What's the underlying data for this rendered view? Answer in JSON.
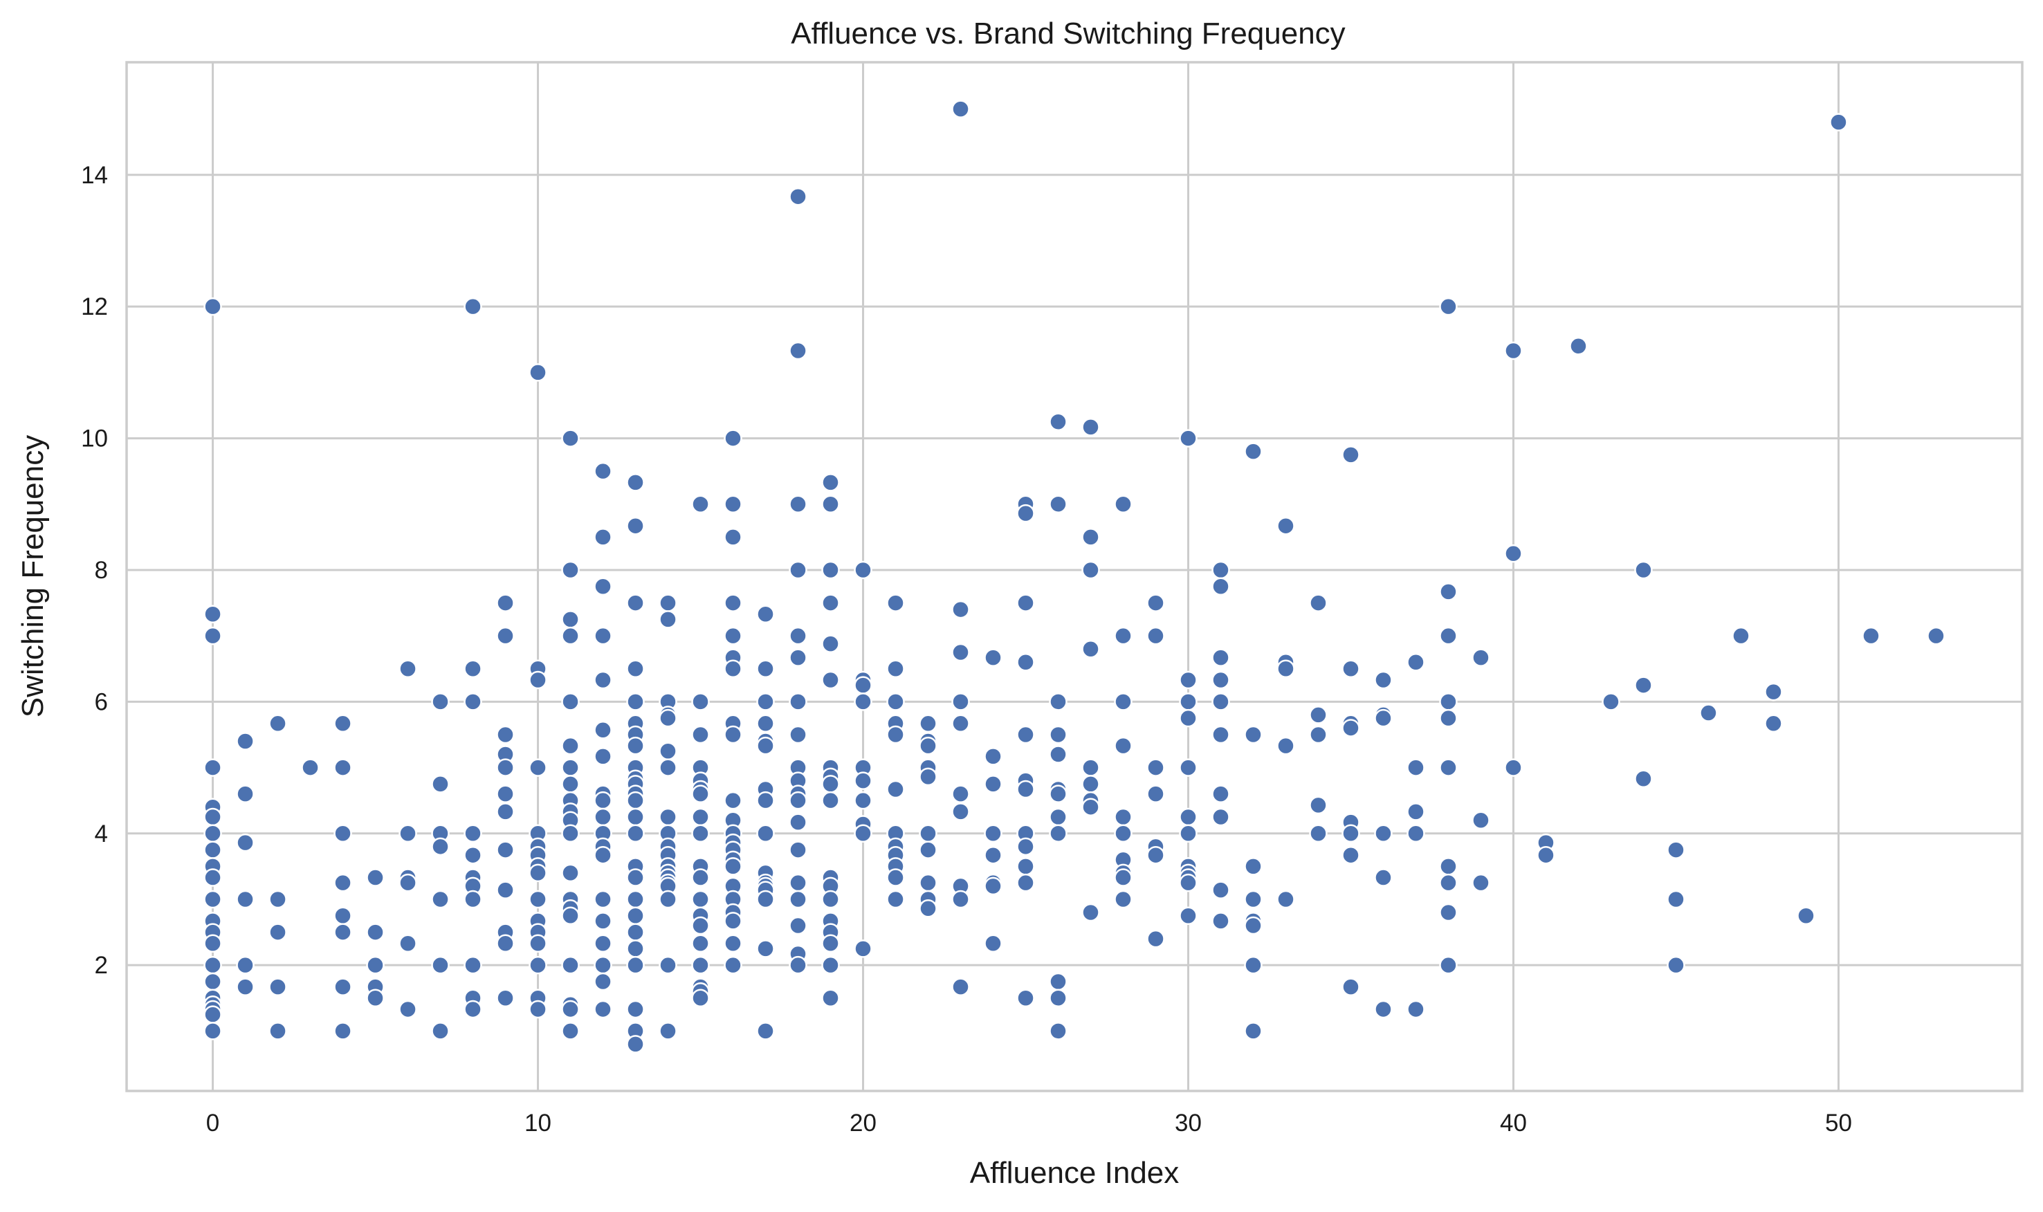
{
  "chart_data": {
    "type": "scatter",
    "title": "Affluence vs. Brand Switching Frequency",
    "xlabel": "Affluence Index",
    "ylabel": "Switching Frequency",
    "xlim": [
      -2.65,
      55.65
    ],
    "ylim": [
      0.09,
      15.71
    ],
    "xticks": [
      0,
      10,
      20,
      30,
      40,
      50
    ],
    "yticks": [
      2,
      4,
      6,
      8,
      10,
      12,
      14
    ],
    "grid": true,
    "marker_color": "#4c72b0",
    "points": [
      [
        0,
        12
      ],
      [
        0,
        7.33
      ],
      [
        0,
        7
      ],
      [
        0,
        5
      ],
      [
        0,
        4.4
      ],
      [
        0,
        4.25
      ],
      [
        0,
        4
      ],
      [
        0,
        3.75
      ],
      [
        0,
        3.5
      ],
      [
        0,
        3.33
      ],
      [
        0,
        3
      ],
      [
        0,
        2.67
      ],
      [
        0,
        2.5
      ],
      [
        0,
        2.33
      ],
      [
        0,
        2
      ],
      [
        0,
        1.75
      ],
      [
        0,
        1.5
      ],
      [
        0,
        1.4
      ],
      [
        0,
        1.33
      ],
      [
        0,
        1.25
      ],
      [
        0,
        1
      ],
      [
        1,
        5.4
      ],
      [
        1,
        4.6
      ],
      [
        1,
        3.86
      ],
      [
        1,
        3
      ],
      [
        1,
        2
      ],
      [
        1,
        1.67
      ],
      [
        2,
        5.67
      ],
      [
        2,
        3
      ],
      [
        2,
        2.5
      ],
      [
        2,
        1.67
      ],
      [
        2,
        1
      ],
      [
        3,
        5
      ],
      [
        4,
        5.67
      ],
      [
        4,
        5
      ],
      [
        4,
        4
      ],
      [
        4,
        3.25
      ],
      [
        4,
        2.75
      ],
      [
        4,
        2.5
      ],
      [
        4,
        1.67
      ],
      [
        4,
        1
      ],
      [
        5,
        3.33
      ],
      [
        5,
        2.5
      ],
      [
        5,
        2
      ],
      [
        5,
        1.67
      ],
      [
        5,
        1.5
      ],
      [
        6,
        6.5
      ],
      [
        6,
        4
      ],
      [
        6,
        3.33
      ],
      [
        6,
        3.25
      ],
      [
        6,
        2.33
      ],
      [
        6,
        1.33
      ],
      [
        7,
        6
      ],
      [
        7,
        4.75
      ],
      [
        7,
        4
      ],
      [
        7,
        3.8
      ],
      [
        7,
        3
      ],
      [
        7,
        2
      ],
      [
        7,
        1
      ],
      [
        8,
        12
      ],
      [
        8,
        6.5
      ],
      [
        8,
        6
      ],
      [
        8,
        4
      ],
      [
        8,
        3.67
      ],
      [
        8,
        3.33
      ],
      [
        8,
        3.2
      ],
      [
        8,
        3
      ],
      [
        8,
        2
      ],
      [
        8,
        1.5
      ],
      [
        8,
        1.33
      ],
      [
        9,
        7.5
      ],
      [
        9,
        7
      ],
      [
        9,
        5.5
      ],
      [
        9,
        5.2
      ],
      [
        9,
        5
      ],
      [
        9,
        4.6
      ],
      [
        9,
        4.33
      ],
      [
        9,
        3.75
      ],
      [
        9,
        3.14
      ],
      [
        9,
        2.5
      ],
      [
        9,
        2.33
      ],
      [
        9,
        1.5
      ],
      [
        10,
        11
      ],
      [
        10,
        6.5
      ],
      [
        10,
        6.33
      ],
      [
        10,
        5
      ],
      [
        10,
        4
      ],
      [
        10,
        3.8
      ],
      [
        10,
        3.67
      ],
      [
        10,
        3.5
      ],
      [
        10,
        3.4
      ],
      [
        10,
        3
      ],
      [
        10,
        2.67
      ],
      [
        10,
        2.5
      ],
      [
        10,
        2.33
      ],
      [
        10,
        2
      ],
      [
        10,
        1.5
      ],
      [
        10,
        1.33
      ],
      [
        11,
        10
      ],
      [
        11,
        8
      ],
      [
        11,
        7.25
      ],
      [
        11,
        7
      ],
      [
        11,
        6
      ],
      [
        11,
        5.33
      ],
      [
        11,
        5
      ],
      [
        11,
        4.75
      ],
      [
        11,
        4.5
      ],
      [
        11,
        4.33
      ],
      [
        11,
        4.2
      ],
      [
        11,
        4
      ],
      [
        11,
        3.4
      ],
      [
        11,
        3
      ],
      [
        11,
        2.86
      ],
      [
        11,
        2.75
      ],
      [
        11,
        2
      ],
      [
        11,
        1.4
      ],
      [
        11,
        1.33
      ],
      [
        11,
        1
      ],
      [
        12,
        9.5
      ],
      [
        12,
        8.5
      ],
      [
        12,
        7.75
      ],
      [
        12,
        7
      ],
      [
        12,
        6.33
      ],
      [
        12,
        5.57
      ],
      [
        12,
        5.17
      ],
      [
        12,
        4.6
      ],
      [
        12,
        4.5
      ],
      [
        12,
        4.25
      ],
      [
        12,
        4
      ],
      [
        12,
        3.8
      ],
      [
        12,
        3.67
      ],
      [
        12,
        3
      ],
      [
        12,
        2.67
      ],
      [
        12,
        2.33
      ],
      [
        12,
        2
      ],
      [
        12,
        1.75
      ],
      [
        12,
        1.33
      ],
      [
        13,
        9.33
      ],
      [
        13,
        8.67
      ],
      [
        13,
        7.5
      ],
      [
        13,
        6.5
      ],
      [
        13,
        6
      ],
      [
        13,
        5.67
      ],
      [
        13,
        5.5
      ],
      [
        13,
        5.33
      ],
      [
        13,
        5
      ],
      [
        13,
        4.83
      ],
      [
        13,
        4.75
      ],
      [
        13,
        4.6
      ],
      [
        13,
        4.5
      ],
      [
        13,
        4.25
      ],
      [
        13,
        4
      ],
      [
        13,
        3.5
      ],
      [
        13,
        3.33
      ],
      [
        13,
        3
      ],
      [
        13,
        2.75
      ],
      [
        13,
        2.5
      ],
      [
        13,
        2.25
      ],
      [
        13,
        2
      ],
      [
        13,
        1.33
      ],
      [
        13,
        1
      ],
      [
        13,
        0.8
      ],
      [
        14,
        7.5
      ],
      [
        14,
        7.25
      ],
      [
        14,
        6
      ],
      [
        14,
        5.8
      ],
      [
        14,
        5.75
      ],
      [
        14,
        5.25
      ],
      [
        14,
        5
      ],
      [
        14,
        4.25
      ],
      [
        14,
        4
      ],
      [
        14,
        3.8
      ],
      [
        14,
        3.67
      ],
      [
        14,
        3.5
      ],
      [
        14,
        3.4
      ],
      [
        14,
        3.33
      ],
      [
        14,
        3.25
      ],
      [
        14,
        3.2
      ],
      [
        14,
        3
      ],
      [
        14,
        2
      ],
      [
        14,
        1
      ],
      [
        15,
        9
      ],
      [
        15,
        6
      ],
      [
        15,
        5.5
      ],
      [
        15,
        5
      ],
      [
        15,
        4.8
      ],
      [
        15,
        4.67
      ],
      [
        15,
        4.6
      ],
      [
        15,
        4.25
      ],
      [
        15,
        4
      ],
      [
        15,
        3.5
      ],
      [
        15,
        3.33
      ],
      [
        15,
        3
      ],
      [
        15,
        2.75
      ],
      [
        15,
        2.6
      ],
      [
        15,
        2.33
      ],
      [
        15,
        2
      ],
      [
        15,
        1.67
      ],
      [
        15,
        1.6
      ],
      [
        15,
        1.5
      ],
      [
        16,
        10
      ],
      [
        16,
        9
      ],
      [
        16,
        8.5
      ],
      [
        16,
        7.5
      ],
      [
        16,
        7
      ],
      [
        16,
        6.67
      ],
      [
        16,
        6.5
      ],
      [
        16,
        5.67
      ],
      [
        16,
        5.5
      ],
      [
        16,
        4.5
      ],
      [
        16,
        4.2
      ],
      [
        16,
        4
      ],
      [
        16,
        3.86
      ],
      [
        16,
        3.75
      ],
      [
        16,
        3.6
      ],
      [
        16,
        3.5
      ],
      [
        16,
        3.2
      ],
      [
        16,
        3
      ],
      [
        16,
        2.8
      ],
      [
        16,
        2.67
      ],
      [
        16,
        2.33
      ],
      [
        16,
        2
      ],
      [
        17,
        7.33
      ],
      [
        17,
        6.5
      ],
      [
        17,
        6
      ],
      [
        17,
        5.67
      ],
      [
        17,
        5.4
      ],
      [
        17,
        5.33
      ],
      [
        17,
        4.67
      ],
      [
        17,
        4.5
      ],
      [
        17,
        4
      ],
      [
        17,
        3.4
      ],
      [
        17,
        3.25
      ],
      [
        17,
        3.2
      ],
      [
        17,
        3.14
      ],
      [
        17,
        3
      ],
      [
        17,
        2.25
      ],
      [
        17,
        1
      ],
      [
        18,
        13.67
      ],
      [
        18,
        11.33
      ],
      [
        18,
        9
      ],
      [
        18,
        8
      ],
      [
        18,
        7
      ],
      [
        18,
        6.67
      ],
      [
        18,
        6
      ],
      [
        18,
        5.5
      ],
      [
        18,
        5
      ],
      [
        18,
        4.8
      ],
      [
        18,
        4.6
      ],
      [
        18,
        4.5
      ],
      [
        18,
        4.17
      ],
      [
        18,
        3.75
      ],
      [
        18,
        3.25
      ],
      [
        18,
        3
      ],
      [
        18,
        2.6
      ],
      [
        18,
        2.17
      ],
      [
        18,
        2
      ],
      [
        19,
        9.33
      ],
      [
        19,
        9
      ],
      [
        19,
        8
      ],
      [
        19,
        7.5
      ],
      [
        19,
        6.88
      ],
      [
        19,
        6.33
      ],
      [
        19,
        5
      ],
      [
        19,
        4.86
      ],
      [
        19,
        4.75
      ],
      [
        19,
        4.5
      ],
      [
        19,
        3.33
      ],
      [
        19,
        3.2
      ],
      [
        19,
        3
      ],
      [
        19,
        2.67
      ],
      [
        19,
        2.5
      ],
      [
        19,
        2.33
      ],
      [
        19,
        2
      ],
      [
        19,
        1.5
      ],
      [
        20,
        8
      ],
      [
        20,
        6.33
      ],
      [
        20,
        6.25
      ],
      [
        20,
        6
      ],
      [
        20,
        5
      ],
      [
        20,
        4.8
      ],
      [
        20,
        4.5
      ],
      [
        20,
        4.14
      ],
      [
        20,
        4
      ],
      [
        20,
        2.25
      ],
      [
        21,
        7.5
      ],
      [
        21,
        6.5
      ],
      [
        21,
        6
      ],
      [
        21,
        5.67
      ],
      [
        21,
        5.5
      ],
      [
        21,
        4.67
      ],
      [
        21,
        4
      ],
      [
        21,
        3.8
      ],
      [
        21,
        3.67
      ],
      [
        21,
        3.5
      ],
      [
        21,
        3.33
      ],
      [
        21,
        3
      ],
      [
        22,
        5.67
      ],
      [
        22,
        5.4
      ],
      [
        22,
        5.33
      ],
      [
        22,
        5
      ],
      [
        22,
        4.86
      ],
      [
        22,
        4
      ],
      [
        22,
        3.75
      ],
      [
        22,
        3.25
      ],
      [
        22,
        3
      ],
      [
        22,
        2.86
      ],
      [
        23,
        15
      ],
      [
        23,
        7.4
      ],
      [
        23,
        6.75
      ],
      [
        23,
        6
      ],
      [
        23,
        5.67
      ],
      [
        23,
        4.6
      ],
      [
        23,
        4.33
      ],
      [
        23,
        3.2
      ],
      [
        23,
        3
      ],
      [
        23,
        1.67
      ],
      [
        24,
        6.67
      ],
      [
        24,
        5.17
      ],
      [
        24,
        4.75
      ],
      [
        24,
        4
      ],
      [
        24,
        3.67
      ],
      [
        24,
        3.25
      ],
      [
        24,
        3.2
      ],
      [
        24,
        2.33
      ],
      [
        25,
        9
      ],
      [
        25,
        8.86
      ],
      [
        25,
        7.5
      ],
      [
        25,
        6.6
      ],
      [
        25,
        5.5
      ],
      [
        25,
        4.8
      ],
      [
        25,
        4.67
      ],
      [
        25,
        4
      ],
      [
        25,
        3.8
      ],
      [
        25,
        3.5
      ],
      [
        25,
        3.25
      ],
      [
        25,
        1.5
      ],
      [
        26,
        10.25
      ],
      [
        26,
        9
      ],
      [
        26,
        6
      ],
      [
        26,
        5.5
      ],
      [
        26,
        5.2
      ],
      [
        26,
        4.67
      ],
      [
        26,
        4.6
      ],
      [
        26,
        4.25
      ],
      [
        26,
        4
      ],
      [
        26,
        1.75
      ],
      [
        26,
        1.5
      ],
      [
        26,
        1
      ],
      [
        27,
        10.17
      ],
      [
        27,
        8.5
      ],
      [
        27,
        8
      ],
      [
        27,
        6.8
      ],
      [
        27,
        5
      ],
      [
        27,
        4.75
      ],
      [
        27,
        4.5
      ],
      [
        27,
        4.4
      ],
      [
        27,
        2.8
      ],
      [
        28,
        9
      ],
      [
        28,
        7
      ],
      [
        28,
        6
      ],
      [
        28,
        5.33
      ],
      [
        28,
        4.25
      ],
      [
        28,
        4
      ],
      [
        28,
        3.6
      ],
      [
        28,
        3.4
      ],
      [
        28,
        3.33
      ],
      [
        28,
        3
      ],
      [
        29,
        7.5
      ],
      [
        29,
        7
      ],
      [
        29,
        5
      ],
      [
        29,
        4.6
      ],
      [
        29,
        3.8
      ],
      [
        29,
        3.67
      ],
      [
        29,
        2.4
      ],
      [
        30,
        10
      ],
      [
        30,
        6.33
      ],
      [
        30,
        6
      ],
      [
        30,
        5.75
      ],
      [
        30,
        5
      ],
      [
        30,
        4.25
      ],
      [
        30,
        4
      ],
      [
        30,
        3.5
      ],
      [
        30,
        3.4
      ],
      [
        30,
        3.33
      ],
      [
        30,
        3.25
      ],
      [
        30,
        2.75
      ],
      [
        31,
        8
      ],
      [
        31,
        7.75
      ],
      [
        31,
        6.67
      ],
      [
        31,
        6.33
      ],
      [
        31,
        6
      ],
      [
        31,
        5.5
      ],
      [
        31,
        4.6
      ],
      [
        31,
        4.25
      ],
      [
        31,
        3.14
      ],
      [
        31,
        2.67
      ],
      [
        32,
        9.8
      ],
      [
        32,
        5.5
      ],
      [
        32,
        3.5
      ],
      [
        32,
        3
      ],
      [
        32,
        2.67
      ],
      [
        32,
        2.6
      ],
      [
        32,
        2
      ],
      [
        32,
        1
      ],
      [
        33,
        8.67
      ],
      [
        33,
        6.6
      ],
      [
        33,
        6.5
      ],
      [
        33,
        5.33
      ],
      [
        33,
        3
      ],
      [
        34,
        7.5
      ],
      [
        34,
        5.8
      ],
      [
        34,
        5.5
      ],
      [
        34,
        4.43
      ],
      [
        34,
        4
      ],
      [
        35,
        9.75
      ],
      [
        35,
        6.5
      ],
      [
        35,
        5.67
      ],
      [
        35,
        5.6
      ],
      [
        35,
        4.17
      ],
      [
        35,
        4
      ],
      [
        35,
        3.67
      ],
      [
        35,
        1.67
      ],
      [
        36,
        6.33
      ],
      [
        36,
        5.8
      ],
      [
        36,
        5.75
      ],
      [
        36,
        4
      ],
      [
        36,
        3.33
      ],
      [
        36,
        1.33
      ],
      [
        37,
        6.6
      ],
      [
        37,
        5
      ],
      [
        37,
        4.33
      ],
      [
        37,
        4
      ],
      [
        37,
        1.33
      ],
      [
        38,
        12
      ],
      [
        38,
        7.67
      ],
      [
        38,
        7
      ],
      [
        38,
        6
      ],
      [
        38,
        5.75
      ],
      [
        38,
        5
      ],
      [
        38,
        3.5
      ],
      [
        38,
        3.25
      ],
      [
        38,
        2.8
      ],
      [
        38,
        2
      ],
      [
        39,
        6.67
      ],
      [
        39,
        4.2
      ],
      [
        39,
        3.25
      ],
      [
        40,
        11.33
      ],
      [
        40,
        8.25
      ],
      [
        40,
        5
      ],
      [
        41,
        3.86
      ],
      [
        41,
        3.67
      ],
      [
        42,
        11.4
      ],
      [
        43,
        6
      ],
      [
        44,
        8
      ],
      [
        44,
        6.25
      ],
      [
        44,
        4.83
      ],
      [
        45,
        3.75
      ],
      [
        45,
        3
      ],
      [
        45,
        2
      ],
      [
        46,
        5.83
      ],
      [
        47,
        7
      ],
      [
        48,
        6.15
      ],
      [
        48,
        5.67
      ],
      [
        49,
        2.75
      ],
      [
        50,
        14.8
      ],
      [
        51,
        7
      ],
      [
        53,
        7
      ]
    ]
  }
}
